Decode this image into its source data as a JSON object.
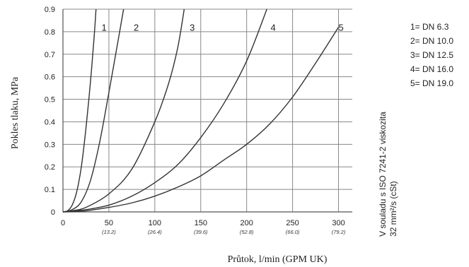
{
  "chart_data": {
    "type": "line",
    "ylabel": "Pokles tlaku, MPa",
    "xlabel": "Průtok, l/min (GPM UK)",
    "xlim": [
      0,
      315
    ],
    "ylim": [
      0,
      0.9
    ],
    "grid": true,
    "y_ticks": [
      "0",
      "0.1",
      "0.2",
      "0.3",
      "0.4",
      "0.5",
      "0.6",
      "0.7",
      "0.8",
      "0.9"
    ],
    "x_ticks": [
      {
        "value": 0,
        "label": "0",
        "sub": ""
      },
      {
        "value": 50,
        "label": "50",
        "sub": "(13.2)"
      },
      {
        "value": 100,
        "label": "100",
        "sub": "(26.4)"
      },
      {
        "value": 150,
        "label": "150",
        "sub": "(39.6)"
      },
      {
        "value": 200,
        "label": "200",
        "sub": "(52.8)"
      },
      {
        "value": 250,
        "label": "250",
        "sub": "(66.0)"
      },
      {
        "value": 300,
        "label": "300",
        "sub": "(79.2)"
      }
    ],
    "series": [
      {
        "name": "1",
        "x": [
          0,
          5,
          10,
          15,
          20,
          25,
          30,
          34,
          36
        ],
        "y": [
          0,
          0.005,
          0.03,
          0.09,
          0.2,
          0.37,
          0.58,
          0.78,
          0.9
        ]
      },
      {
        "name": "2",
        "x": [
          0,
          10,
          20,
          30,
          40,
          50,
          60,
          66
        ],
        "y": [
          0,
          0.01,
          0.045,
          0.14,
          0.31,
          0.53,
          0.76,
          0.9
        ]
      },
      {
        "name": "3",
        "x": [
          0,
          10,
          25,
          50,
          75,
          100,
          115,
          125,
          132
        ],
        "y": [
          0,
          0.005,
          0.02,
          0.08,
          0.19,
          0.4,
          0.57,
          0.73,
          0.9
        ]
      },
      {
        "name": "4",
        "x": [
          0,
          25,
          50,
          75,
          100,
          125,
          150,
          175,
          200,
          222
        ],
        "y": [
          0,
          0.01,
          0.03,
          0.07,
          0.13,
          0.21,
          0.33,
          0.48,
          0.67,
          0.9
        ]
      },
      {
        "name": "5",
        "x": [
          0,
          25,
          50,
          75,
          100,
          125,
          150,
          175,
          200,
          225,
          250,
          275,
          300
        ],
        "y": [
          0,
          0.005,
          0.02,
          0.04,
          0.07,
          0.11,
          0.16,
          0.23,
          0.3,
          0.39,
          0.51,
          0.66,
          0.82
        ]
      }
    ],
    "curve_labels": [
      {
        "text": "1",
        "x": 42,
        "y": 0.82
      },
      {
        "text": "2",
        "x": 77,
        "y": 0.82
      },
      {
        "text": "3",
        "x": 138,
        "y": 0.82
      },
      {
        "text": "4",
        "x": 226,
        "y": 0.82
      },
      {
        "text": "5",
        "x": 300,
        "y": 0.82
      }
    ],
    "legend": [
      "1= DN 6.3",
      "2= DN 10.0",
      "3= DN 12.5",
      "4= DN 16.0",
      "5= DN 19.0"
    ],
    "note_line1": "V souladu s ISO 7241-2 viskozita",
    "note_line2": "32 mm²/s (cSt)",
    "colors": {
      "curve": "#333333",
      "grid": "#888888",
      "axis": "#555555"
    }
  }
}
